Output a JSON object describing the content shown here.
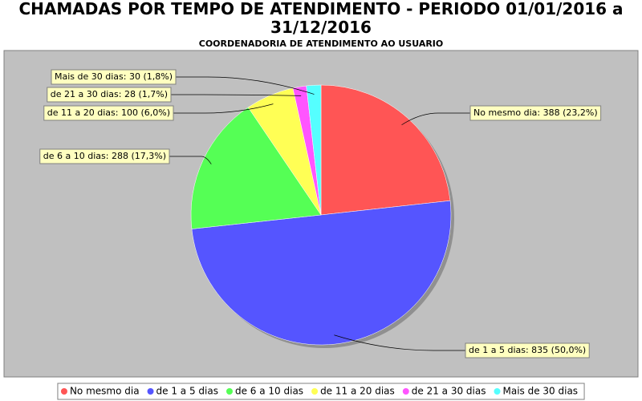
{
  "chart_data": {
    "type": "pie",
    "title": "CHAMADAS POR TEMPO DE ATENDIMENTO - PERIODO 01/01/2016 a 31/12/2016",
    "subtitle": "COORDENADORIA DE ATENDIMENTO AO USUARIO",
    "categories": [
      "No mesmo dia",
      "de 1 a 5 dias",
      "de 6 a 10 dias",
      "de 11 a 20 dias",
      "de 21 a 30 dias",
      "Mais de 30 dias"
    ],
    "values": [
      388,
      835,
      288,
      100,
      28,
      30
    ],
    "value_labels": [
      "No mesmo dia: 388 (23,2%)",
      "de 1 a 5 dias: 835 (50,0%)",
      "de 6 a 10 dias: 288 (17,3%)",
      "de 11 a 20 dias: 100 (6,0%)",
      "de 21 a 30 dias: 28 (1,7%)",
      "Mais de 30 dias: 30 (1,8%)"
    ],
    "colors": [
      "#ff5555",
      "#5555ff",
      "#55ff55",
      "#ffff55",
      "#ff55ff",
      "#55ffff"
    ],
    "legend": "bottom"
  }
}
